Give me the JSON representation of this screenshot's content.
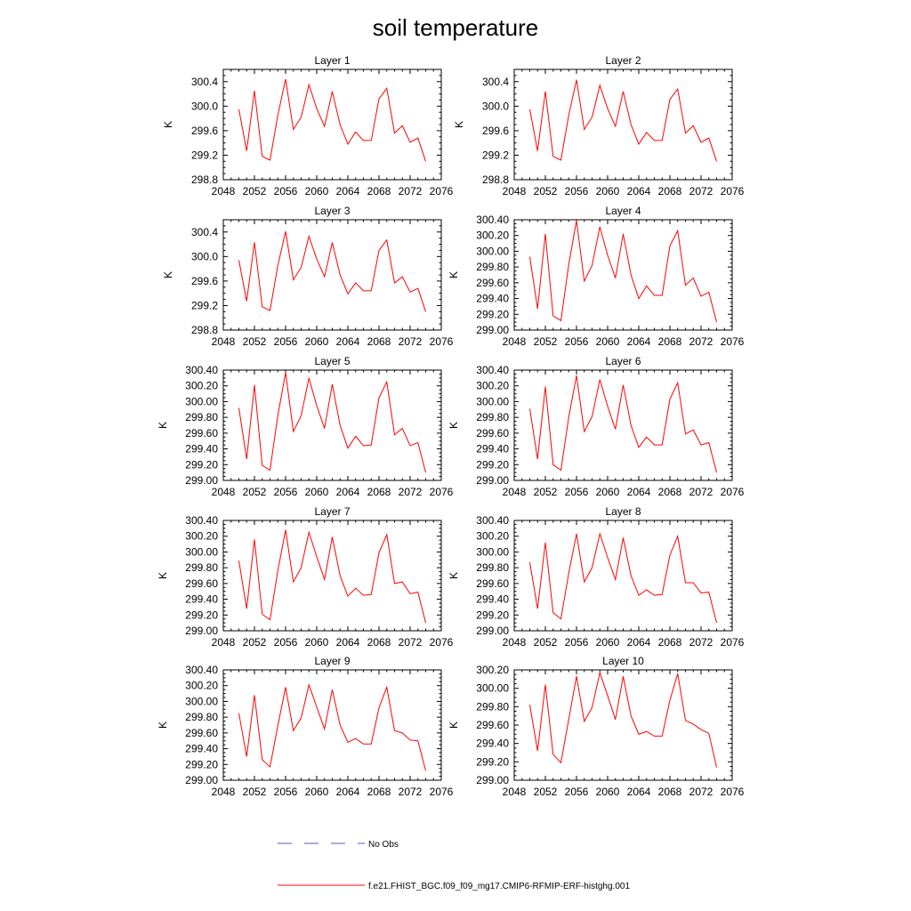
{
  "figure": {
    "title": "soil temperature",
    "legend": [
      {
        "label": "No Obs",
        "color": "#5a5ab4",
        "style": "dashed"
      },
      {
        "label": "f.e21.FHIST_BGC.f09_f09_mg17.CMIP6-RFMIP-ERF-histghg.001",
        "color": "#ff0000",
        "style": "solid"
      }
    ]
  },
  "chart_data": [
    {
      "type": "line",
      "title": "Layer 1",
      "ylabel": "K",
      "xlim": [
        2048,
        2076
      ],
      "ylim": [
        298.8,
        300.6
      ],
      "xticks": [
        "2048",
        "2052",
        "2056",
        "2060",
        "2064",
        "2068",
        "2072",
        "2076"
      ],
      "yticks": [
        "298.8",
        "299.2",
        "299.6",
        "300.0",
        "300.4"
      ],
      "x": [
        2050,
        2051,
        2052,
        2053,
        2054,
        2055,
        2056,
        2057,
        2058,
        2059,
        2060,
        2061,
        2062,
        2063,
        2064,
        2065,
        2066,
        2067,
        2068,
        2069,
        2070,
        2071,
        2072,
        2073,
        2074
      ],
      "series": [
        {
          "name": "f.e21.FHIST_BGC.f09_f09_mg17.CMIP6-RFMIP-ERF-histghg.001",
          "color": "#ff0000",
          "values": [
            299.95,
            299.27,
            300.25,
            299.18,
            299.12,
            299.85,
            300.44,
            299.62,
            299.82,
            300.35,
            299.96,
            299.67,
            300.24,
            299.7,
            299.38,
            299.58,
            299.44,
            299.44,
            300.12,
            300.29,
            299.56,
            299.68,
            299.41,
            299.48,
            299.1
          ]
        }
      ]
    },
    {
      "type": "line",
      "title": "Layer 2",
      "ylabel": "K",
      "xlim": [
        2048,
        2076
      ],
      "ylim": [
        298.8,
        300.6
      ],
      "xticks": [
        "2048",
        "2052",
        "2056",
        "2060",
        "2064",
        "2068",
        "2072",
        "2076"
      ],
      "yticks": [
        "298.8",
        "299.2",
        "299.6",
        "300.0",
        "300.4"
      ],
      "x": [
        2050,
        2051,
        2052,
        2053,
        2054,
        2055,
        2056,
        2057,
        2058,
        2059,
        2060,
        2061,
        2062,
        2063,
        2064,
        2065,
        2066,
        2067,
        2068,
        2069,
        2070,
        2071,
        2072,
        2073,
        2074
      ],
      "series": [
        {
          "name": "f.e21.FHIST_BGC.f09_f09_mg17.CMIP6-RFMIP-ERF-histghg.001",
          "color": "#ff0000",
          "values": [
            299.95,
            299.27,
            300.24,
            299.18,
            299.12,
            299.85,
            300.43,
            299.62,
            299.82,
            300.34,
            299.96,
            299.67,
            300.24,
            299.7,
            299.38,
            299.57,
            299.44,
            299.44,
            300.11,
            300.28,
            299.56,
            299.68,
            299.41,
            299.48,
            299.1
          ]
        }
      ]
    },
    {
      "type": "line",
      "title": "Layer 3",
      "ylabel": "K",
      "xlim": [
        2048,
        2076
      ],
      "ylim": [
        298.8,
        300.6
      ],
      "xticks": [
        "2048",
        "2052",
        "2056",
        "2060",
        "2064",
        "2068",
        "2072",
        "2076"
      ],
      "yticks": [
        "298.8",
        "299.2",
        "299.6",
        "300.0",
        "300.4"
      ],
      "x": [
        2050,
        2051,
        2052,
        2053,
        2054,
        2055,
        2056,
        2057,
        2058,
        2059,
        2060,
        2061,
        2062,
        2063,
        2064,
        2065,
        2066,
        2067,
        2068,
        2069,
        2070,
        2071,
        2072,
        2073,
        2074
      ],
      "series": [
        {
          "name": "f.e21.FHIST_BGC.f09_f09_mg17.CMIP6-RFMIP-ERF-histghg.001",
          "color": "#ff0000",
          "values": [
            299.94,
            299.27,
            300.23,
            299.18,
            299.12,
            299.85,
            300.41,
            299.62,
            299.82,
            300.33,
            299.96,
            299.67,
            300.23,
            299.7,
            299.39,
            299.57,
            299.44,
            299.44,
            300.1,
            300.27,
            299.57,
            299.67,
            299.42,
            299.48,
            299.1
          ]
        }
      ]
    },
    {
      "type": "line",
      "title": "Layer 4",
      "ylabel": "K",
      "xlim": [
        2048,
        2076
      ],
      "ylim": [
        299.0,
        300.4
      ],
      "xticks": [
        "2048",
        "2052",
        "2056",
        "2060",
        "2064",
        "2068",
        "2072",
        "2076"
      ],
      "yticks": [
        "299.00",
        "299.20",
        "299.40",
        "299.60",
        "299.80",
        "300.00",
        "300.20",
        "300.40"
      ],
      "x": [
        2050,
        2051,
        2052,
        2053,
        2054,
        2055,
        2056,
        2057,
        2058,
        2059,
        2060,
        2061,
        2062,
        2063,
        2064,
        2065,
        2066,
        2067,
        2068,
        2069,
        2070,
        2071,
        2072,
        2073,
        2074
      ],
      "series": [
        {
          "name": "f.e21.FHIST_BGC.f09_f09_mg17.CMIP6-RFMIP-ERF-histghg.001",
          "color": "#ff0000",
          "values": [
            299.93,
            299.27,
            300.22,
            299.18,
            299.12,
            299.83,
            300.39,
            299.62,
            299.82,
            300.31,
            299.95,
            299.66,
            300.22,
            299.7,
            299.4,
            299.56,
            299.44,
            299.44,
            300.07,
            300.26,
            299.57,
            299.66,
            299.43,
            299.48,
            299.1
          ]
        }
      ]
    },
    {
      "type": "line",
      "title": "Layer 5",
      "ylabel": "K",
      "xlim": [
        2048,
        2076
      ],
      "ylim": [
        299.0,
        300.4
      ],
      "xticks": [
        "2048",
        "2052",
        "2056",
        "2060",
        "2064",
        "2068",
        "2072",
        "2076"
      ],
      "yticks": [
        "299.00",
        "299.20",
        "299.40",
        "299.60",
        "299.80",
        "300.00",
        "300.20",
        "300.40"
      ],
      "x": [
        2050,
        2051,
        2052,
        2053,
        2054,
        2055,
        2056,
        2057,
        2058,
        2059,
        2060,
        2061,
        2062,
        2063,
        2064,
        2065,
        2066,
        2067,
        2068,
        2069,
        2070,
        2071,
        2072,
        2073,
        2074
      ],
      "series": [
        {
          "name": "f.e21.FHIST_BGC.f09_f09_mg17.CMIP6-RFMIP-ERF-histghg.001",
          "color": "#ff0000",
          "values": [
            299.92,
            299.27,
            300.21,
            299.19,
            299.13,
            299.82,
            300.37,
            299.62,
            299.82,
            300.3,
            299.95,
            299.66,
            300.22,
            299.7,
            299.41,
            299.56,
            299.44,
            299.45,
            300.05,
            300.25,
            299.58,
            299.66,
            299.44,
            299.48,
            299.1
          ]
        }
      ]
    },
    {
      "type": "line",
      "title": "Layer 6",
      "ylabel": "K",
      "xlim": [
        2048,
        2076
      ],
      "ylim": [
        299.0,
        300.4
      ],
      "xticks": [
        "2048",
        "2052",
        "2056",
        "2060",
        "2064",
        "2068",
        "2072",
        "2076"
      ],
      "yticks": [
        "299.00",
        "299.20",
        "299.40",
        "299.60",
        "299.80",
        "300.00",
        "300.20",
        "300.40"
      ],
      "x": [
        2050,
        2051,
        2052,
        2053,
        2054,
        2055,
        2056,
        2057,
        2058,
        2059,
        2060,
        2061,
        2062,
        2063,
        2064,
        2065,
        2066,
        2067,
        2068,
        2069,
        2070,
        2071,
        2072,
        2073,
        2074
      ],
      "series": [
        {
          "name": "f.e21.FHIST_BGC.f09_f09_mg17.CMIP6-RFMIP-ERF-histghg.001",
          "color": "#ff0000",
          "values": [
            299.91,
            299.27,
            300.19,
            299.2,
            299.13,
            299.8,
            300.33,
            299.62,
            299.81,
            300.28,
            299.94,
            299.65,
            300.21,
            299.7,
            299.42,
            299.55,
            299.45,
            299.45,
            300.03,
            300.24,
            299.59,
            299.64,
            299.45,
            299.48,
            299.1
          ]
        }
      ]
    },
    {
      "type": "line",
      "title": "Layer 7",
      "ylabel": "K",
      "xlim": [
        2048,
        2076
      ],
      "ylim": [
        299.0,
        300.4
      ],
      "xticks": [
        "2048",
        "2052",
        "2056",
        "2060",
        "2064",
        "2068",
        "2072",
        "2076"
      ],
      "yticks": [
        "299.00",
        "299.20",
        "299.40",
        "299.60",
        "299.80",
        "300.00",
        "300.20",
        "300.40"
      ],
      "x": [
        2050,
        2051,
        2052,
        2053,
        2054,
        2055,
        2056,
        2057,
        2058,
        2059,
        2060,
        2061,
        2062,
        2063,
        2064,
        2065,
        2066,
        2067,
        2068,
        2069,
        2070,
        2071,
        2072,
        2073,
        2074
      ],
      "series": [
        {
          "name": "f.e21.FHIST_BGC.f09_f09_mg17.CMIP6-RFMIP-ERF-histghg.001",
          "color": "#ff0000",
          "values": [
            299.89,
            299.28,
            300.16,
            299.21,
            299.14,
            299.76,
            300.28,
            299.62,
            299.8,
            300.25,
            299.94,
            299.65,
            300.19,
            299.7,
            299.44,
            299.54,
            299.45,
            299.46,
            299.99,
            300.22,
            299.6,
            299.62,
            299.47,
            299.49,
            299.1
          ]
        }
      ]
    },
    {
      "type": "line",
      "title": "Layer 8",
      "ylabel": "K",
      "xlim": [
        2048,
        2076
      ],
      "ylim": [
        299.0,
        300.4
      ],
      "xticks": [
        "2048",
        "2052",
        "2056",
        "2060",
        "2064",
        "2068",
        "2072",
        "2076"
      ],
      "yticks": [
        "299.00",
        "299.20",
        "299.40",
        "299.60",
        "299.80",
        "300.00",
        "300.20",
        "300.40"
      ],
      "x": [
        2050,
        2051,
        2052,
        2053,
        2054,
        2055,
        2056,
        2057,
        2058,
        2059,
        2060,
        2061,
        2062,
        2063,
        2064,
        2065,
        2066,
        2067,
        2068,
        2069,
        2070,
        2071,
        2072,
        2073,
        2074
      ],
      "series": [
        {
          "name": "f.e21.FHIST_BGC.f09_f09_mg17.CMIP6-RFMIP-ERF-histghg.001",
          "color": "#ff0000",
          "values": [
            299.87,
            299.28,
            300.12,
            299.23,
            299.15,
            299.73,
            300.23,
            299.62,
            299.8,
            300.23,
            299.93,
            299.65,
            300.18,
            299.7,
            299.45,
            299.52,
            299.45,
            299.46,
            299.96,
            300.2,
            299.61,
            299.61,
            299.48,
            299.49,
            299.1
          ]
        }
      ]
    },
    {
      "type": "line",
      "title": "Layer 9",
      "ylabel": "K",
      "xlim": [
        2048,
        2076
      ],
      "ylim": [
        299.0,
        300.4
      ],
      "xticks": [
        "2048",
        "2052",
        "2056",
        "2060",
        "2064",
        "2068",
        "2072",
        "2076"
      ],
      "yticks": [
        "299.00",
        "299.20",
        "299.40",
        "299.60",
        "299.80",
        "300.00",
        "300.20",
        "300.40"
      ],
      "x": [
        2050,
        2051,
        2052,
        2053,
        2054,
        2055,
        2056,
        2057,
        2058,
        2059,
        2060,
        2061,
        2062,
        2063,
        2064,
        2065,
        2066,
        2067,
        2068,
        2069,
        2070,
        2071,
        2072,
        2073,
        2074
      ],
      "series": [
        {
          "name": "f.e21.FHIST_BGC.f09_f09_mg17.CMIP6-RFMIP-ERF-histghg.001",
          "color": "#ff0000",
          "values": [
            299.85,
            299.3,
            300.08,
            299.26,
            299.17,
            299.69,
            300.18,
            299.63,
            299.79,
            300.21,
            299.93,
            299.65,
            300.15,
            299.7,
            299.48,
            299.53,
            299.46,
            299.46,
            299.92,
            300.18,
            299.63,
            299.6,
            299.51,
            299.5,
            299.12
          ]
        }
      ]
    },
    {
      "type": "line",
      "title": "Layer 10",
      "ylabel": "K",
      "xlim": [
        2048,
        2076
      ],
      "ylim": [
        299.0,
        300.2
      ],
      "xticks": [
        "2048",
        "2052",
        "2056",
        "2060",
        "2064",
        "2068",
        "2072",
        "2076"
      ],
      "yticks": [
        "299.00",
        "299.20",
        "299.40",
        "299.60",
        "299.80",
        "300.00",
        "300.20"
      ],
      "x": [
        2050,
        2051,
        2052,
        2053,
        2054,
        2055,
        2056,
        2057,
        2058,
        2059,
        2060,
        2061,
        2062,
        2063,
        2064,
        2065,
        2066,
        2067,
        2068,
        2069,
        2070,
        2071,
        2072,
        2073,
        2074
      ],
      "series": [
        {
          "name": "f.e21.FHIST_BGC.f09_f09_mg17.CMIP6-RFMIP-ERF-histghg.001",
          "color": "#ff0000",
          "values": [
            299.82,
            299.32,
            300.04,
            299.28,
            299.19,
            299.66,
            300.13,
            299.64,
            299.79,
            300.17,
            299.92,
            299.66,
            300.13,
            299.7,
            299.5,
            299.53,
            299.48,
            299.48,
            299.87,
            300.16,
            299.65,
            299.61,
            299.55,
            299.51,
            299.14
          ]
        }
      ]
    }
  ]
}
